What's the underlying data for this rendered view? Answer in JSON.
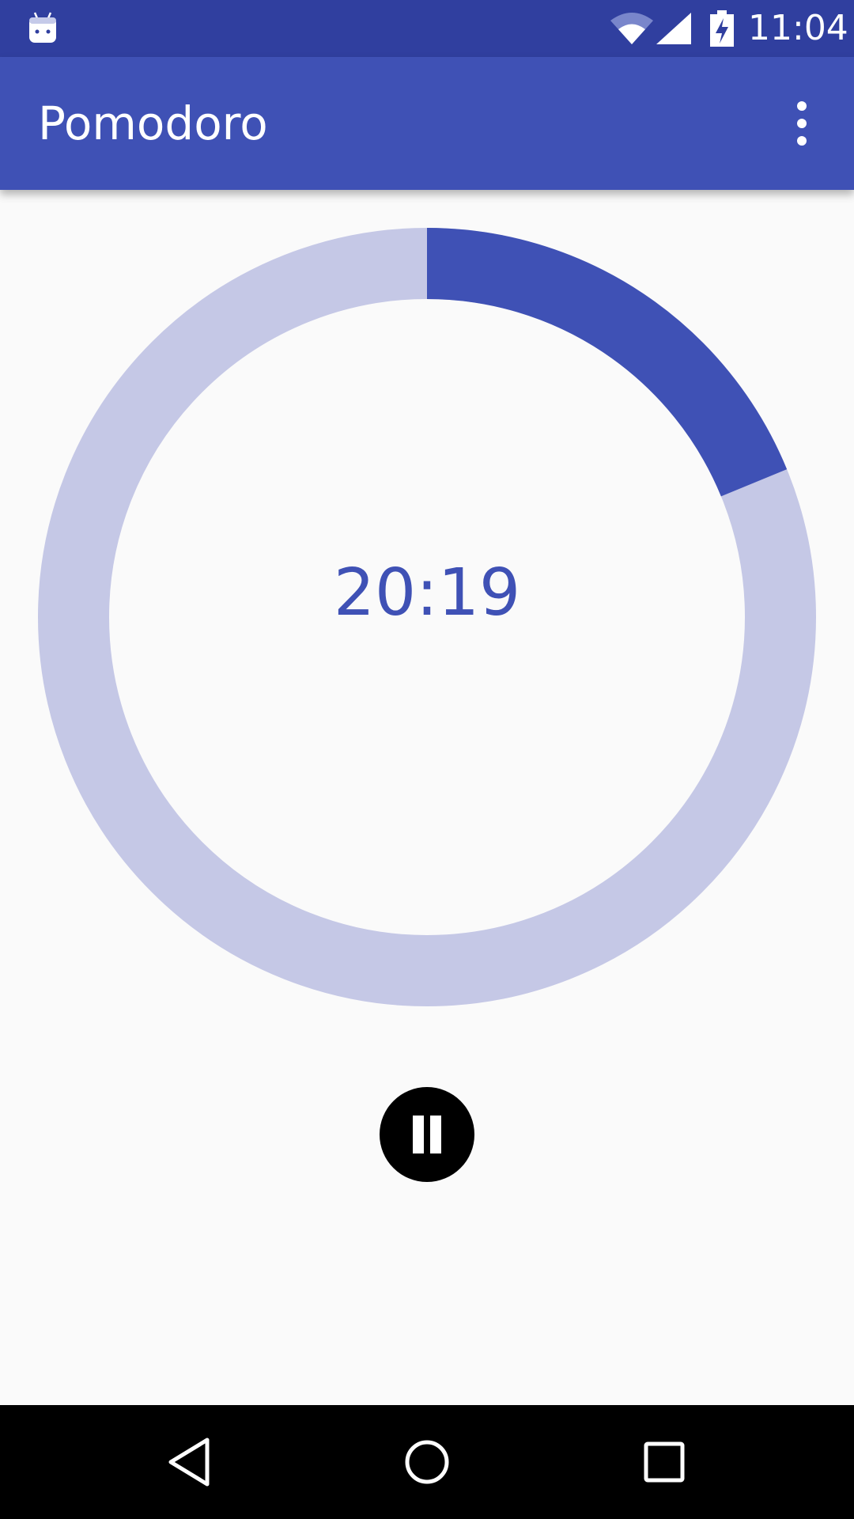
{
  "status_bar": {
    "time": "11:04",
    "icons": [
      "android-notification-icon",
      "wifi-icon",
      "signal-icon",
      "battery-charging-icon"
    ],
    "color": "#303F9F"
  },
  "app_bar": {
    "title": "Pomodoro",
    "overflow_icon": "more-vert-icon",
    "color": "#3F51B5"
  },
  "timer": {
    "remaining": "20:19",
    "progress_fraction": 0.188,
    "progress_color": "#3F51B5",
    "track_color": "#C5C8E6"
  },
  "controls": {
    "pause_icon": "pause-icon"
  },
  "nav_bar": {
    "icons": [
      "back-icon",
      "home-icon",
      "recents-icon"
    ]
  }
}
